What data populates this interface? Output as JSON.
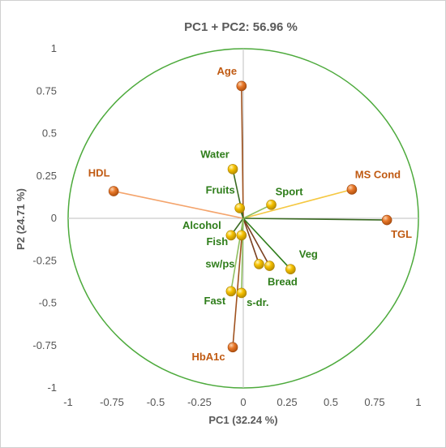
{
  "chart_data": {
    "type": "scatter",
    "title": "PC1 + PC2: 56.96 %",
    "xlabel": "PC1 (32.24 %)",
    "ylabel": "P2 (24.71 %)",
    "xlim": [
      -1,
      1
    ],
    "ylim": [
      -1,
      1
    ],
    "grid": false,
    "x_ticks": [
      "-1",
      "-0.75",
      "-0.5",
      "-0.25",
      "0",
      "0.25",
      "0.5",
      "0.75",
      "1"
    ],
    "y_ticks": [
      "1",
      "0.75",
      "0.5",
      "0.25",
      "0",
      "-0.25",
      "-0.5",
      "-0.75",
      "-1"
    ],
    "unit_circle_color": "#4daa3c",
    "colors": {
      "orange_marker": "#e8782a",
      "yellow_marker": "#f5c000",
      "orange_label": "#c05a12",
      "green_label": "#2e7d1a"
    },
    "points": [
      {
        "label": "Age",
        "x": -0.01,
        "y": 0.78,
        "group": "orange",
        "line": "#a0521e"
      },
      {
        "label": "HDL",
        "x": -0.74,
        "y": 0.16,
        "group": "orange",
        "line": "#f4a46c"
      },
      {
        "label": "MS Cond",
        "x": 0.62,
        "y": 0.17,
        "group": "orange",
        "line": "#f5c842"
      },
      {
        "label": "TGL",
        "x": 0.82,
        "y": -0.01,
        "group": "orange",
        "line": "#3a6a22"
      },
      {
        "label": "HbA1c",
        "x": -0.06,
        "y": -0.76,
        "group": "orange",
        "line": "#a0521e"
      },
      {
        "label": "Water",
        "x": -0.06,
        "y": 0.29,
        "group": "yellow",
        "line": "#3a6a22"
      },
      {
        "label": "Fruits",
        "x": -0.02,
        "y": 0.06,
        "group": "yellow",
        "line": "#3a6a22"
      },
      {
        "label": "Sport",
        "x": 0.16,
        "y": 0.08,
        "group": "yellow",
        "line": "#8fbf60"
      },
      {
        "label": "Alcohol",
        "x": -0.07,
        "y": -0.1,
        "group": "yellow",
        "line": "#3a6a22"
      },
      {
        "label": "Fish",
        "x": -0.01,
        "y": -0.1,
        "group": "yellow",
        "line": "#3a6a22"
      },
      {
        "label": "sw/ps",
        "x": 0.09,
        "y": -0.27,
        "group": "yellow",
        "line": "#7a4020"
      },
      {
        "label": "Bread",
        "x": 0.15,
        "y": -0.28,
        "group": "yellow",
        "line": "#7a4020"
      },
      {
        "label": "Veg",
        "x": 0.27,
        "y": -0.3,
        "group": "yellow",
        "line": "#2e7d1a"
      },
      {
        "label": "Fast",
        "x": -0.07,
        "y": -0.43,
        "group": "yellow",
        "line": "#8fbf60"
      },
      {
        "label": "s-dr.",
        "x": -0.01,
        "y": -0.44,
        "group": "yellow",
        "line": "#8fbf60"
      }
    ]
  }
}
